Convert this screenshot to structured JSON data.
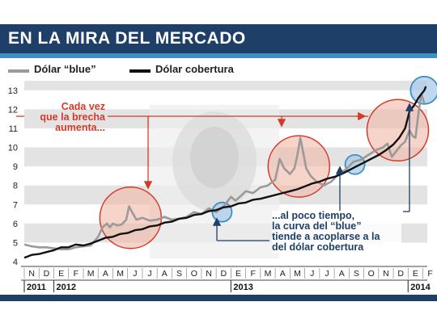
{
  "title": "EN LA MIRA DEL MERCADO",
  "colors": {
    "blue_series": "#9a9a9a",
    "cobertura_series": "#111111",
    "accent_red": "#d23a2a",
    "accent_blue": "#1e3f68",
    "band": "#e3e3e3"
  },
  "legend": [
    {
      "label": "Dólar “blue”",
      "color": "#9a9a9a"
    },
    {
      "label": "Dólar cobertura",
      "color": "#111111"
    }
  ],
  "annotations": {
    "red": [
      "Cada vez",
      "que la brecha",
      "aumenta..."
    ],
    "blue": [
      "...al poco tiempo,",
      "la curva del “blue”",
      "tiende a acoplarse a la",
      "del dólar cobertura"
    ]
  },
  "chart_data": {
    "type": "line",
    "ylim": [
      4,
      13.5
    ],
    "yticks": [
      "4",
      "5",
      "6",
      "7",
      "8",
      "9",
      "10",
      "11",
      "12",
      "13"
    ],
    "month_labels": [
      "N",
      "D",
      "E",
      "F",
      "M",
      "A",
      "M",
      "J",
      "J",
      "A",
      "S",
      "O",
      "N",
      "D",
      "E",
      "F",
      "M",
      "A",
      "M",
      "J",
      "J",
      "A",
      "S",
      "O",
      "N",
      "D",
      "E",
      "F"
    ],
    "year_labels": [
      {
        "label": "2011",
        "month_index": 0
      },
      {
        "label": "2012",
        "month_index": 2
      },
      {
        "label": "2013",
        "month_index": 14
      },
      {
        "label": "2014",
        "month_index": 26
      }
    ],
    "x_range_months": [
      0,
      27.3
    ],
    "series": [
      {
        "name": "Dólar “blue”",
        "color": "#9a9a9a",
        "points": [
          [
            0,
            4.9
          ],
          [
            0.5,
            4.8
          ],
          [
            1,
            4.75
          ],
          [
            1.5,
            4.75
          ],
          [
            2,
            4.7
          ],
          [
            2.5,
            4.65
          ],
          [
            3,
            4.65
          ],
          [
            3.5,
            4.75
          ],
          [
            4,
            4.8
          ],
          [
            4.5,
            4.85
          ],
          [
            5,
            5.3
          ],
          [
            5.3,
            5.8
          ],
          [
            5.6,
            6.0
          ],
          [
            5.8,
            5.8
          ],
          [
            6,
            6.0
          ],
          [
            6.3,
            5.9
          ],
          [
            6.6,
            5.95
          ],
          [
            6.9,
            6.2
          ],
          [
            7.1,
            6.9
          ],
          [
            7.3,
            6.6
          ],
          [
            7.6,
            6.2
          ],
          [
            8,
            6.3
          ],
          [
            8.5,
            6.15
          ],
          [
            9,
            6.2
          ],
          [
            9.5,
            6.35
          ],
          [
            10,
            6.2
          ],
          [
            10.5,
            6.25
          ],
          [
            11,
            6.35
          ],
          [
            11.5,
            6.6
          ],
          [
            12,
            6.5
          ],
          [
            12.5,
            6.8
          ],
          [
            13,
            6.6
          ],
          [
            13.5,
            6.9
          ],
          [
            14,
            7.4
          ],
          [
            14.3,
            7.2
          ],
          [
            14.6,
            7.4
          ],
          [
            15,
            7.7
          ],
          [
            15.5,
            7.6
          ],
          [
            16,
            7.9
          ],
          [
            16.5,
            8.0
          ],
          [
            17,
            8.3
          ],
          [
            17.3,
            9.4
          ],
          [
            17.6,
            8.9
          ],
          [
            18,
            8.6
          ],
          [
            18.3,
            8.9
          ],
          [
            18.5,
            9.6
          ],
          [
            18.7,
            10.5
          ],
          [
            18.9,
            9.7
          ],
          [
            19.1,
            8.9
          ],
          [
            19.4,
            8.5
          ],
          [
            19.8,
            8.2
          ],
          [
            20.3,
            8.0
          ],
          [
            20.8,
            8.2
          ],
          [
            21.3,
            8.6
          ],
          [
            21.8,
            8.85
          ],
          [
            22.3,
            9.25
          ],
          [
            22.8,
            9.35
          ],
          [
            23.3,
            9.6
          ],
          [
            23.8,
            9.85
          ],
          [
            24.3,
            10.0
          ],
          [
            24.6,
            10.2
          ],
          [
            24.9,
            9.5
          ],
          [
            25.2,
            9.8
          ],
          [
            25.5,
            10.1
          ],
          [
            25.8,
            10.3
          ],
          [
            26.1,
            10.9
          ],
          [
            26.3,
            10.6
          ],
          [
            26.5,
            10.5
          ],
          [
            26.7,
            11.8
          ],
          [
            26.9,
            12.8
          ],
          [
            27.1,
            12.3
          ]
        ]
      },
      {
        "name": "Dólar cobertura",
        "color": "#111111",
        "points": [
          [
            0,
            4.2
          ],
          [
            0.5,
            4.35
          ],
          [
            1,
            4.4
          ],
          [
            1.5,
            4.5
          ],
          [
            2,
            4.6
          ],
          [
            2.5,
            4.75
          ],
          [
            3,
            4.75
          ],
          [
            3.5,
            4.9
          ],
          [
            4,
            4.85
          ],
          [
            4.5,
            4.95
          ],
          [
            5,
            5.1
          ],
          [
            5.5,
            5.25
          ],
          [
            6,
            5.3
          ],
          [
            6.5,
            5.45
          ],
          [
            7,
            5.5
          ],
          [
            7.5,
            5.65
          ],
          [
            8,
            5.7
          ],
          [
            8.5,
            5.85
          ],
          [
            9,
            5.9
          ],
          [
            9.5,
            6.05
          ],
          [
            10,
            6.1
          ],
          [
            10.5,
            6.25
          ],
          [
            11,
            6.3
          ],
          [
            11.5,
            6.45
          ],
          [
            12,
            6.5
          ],
          [
            12.5,
            6.65
          ],
          [
            13,
            6.7
          ],
          [
            13.5,
            6.85
          ],
          [
            14,
            6.9
          ],
          [
            14.5,
            7.05
          ],
          [
            15,
            7.1
          ],
          [
            15.5,
            7.25
          ],
          [
            16,
            7.3
          ],
          [
            16.5,
            7.4
          ],
          [
            17,
            7.5
          ],
          [
            17.5,
            7.6
          ],
          [
            18,
            7.7
          ],
          [
            18.5,
            7.8
          ],
          [
            19,
            7.95
          ],
          [
            19.5,
            8.1
          ],
          [
            20,
            8.2
          ],
          [
            20.5,
            8.35
          ],
          [
            21,
            8.45
          ],
          [
            21.5,
            8.6
          ],
          [
            22,
            8.8
          ],
          [
            22.5,
            9.0
          ],
          [
            23,
            9.2
          ],
          [
            23.5,
            9.4
          ],
          [
            24,
            9.6
          ],
          [
            24.5,
            9.85
          ],
          [
            25,
            10.15
          ],
          [
            25.4,
            10.5
          ],
          [
            25.8,
            11.0
          ],
          [
            26.1,
            11.9
          ],
          [
            26.4,
            12.2
          ],
          [
            26.7,
            12.6
          ],
          [
            26.9,
            12.8
          ],
          [
            27.1,
            13.0
          ],
          [
            27.2,
            13.2
          ]
        ]
      }
    ],
    "highlights": [
      {
        "kind": "gap",
        "x": 7.2,
        "y": 6.3
      },
      {
        "kind": "gap",
        "x": 18.6,
        "y": 9.0
      },
      {
        "kind": "gap",
        "x": 25.3,
        "y": 10.9
      },
      {
        "kind": "converge",
        "x": 13.4,
        "y": 6.6
      },
      {
        "kind": "converge",
        "x": 22.4,
        "y": 9.1
      },
      {
        "kind": "converge",
        "x": 27.1,
        "y": 13.0
      }
    ]
  }
}
